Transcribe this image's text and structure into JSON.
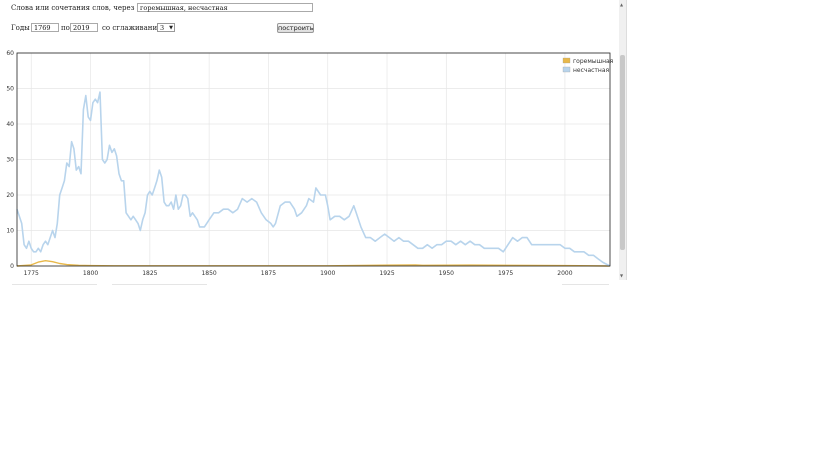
{
  "form": {
    "words_label": "Слова или сочетания слов, через запятую:",
    "words_value": "горемышная, несчастная",
    "years_from_label": "Годы с",
    "year_from": "1769",
    "years_to_label": "по",
    "year_to": "2019",
    "smoothing_label": "со сглаживанием",
    "smoothing_value": "3",
    "build_button": "построить"
  },
  "colors": {
    "gormyshnaya": "#e8b84a",
    "neschastnaya": "#b8d4ec",
    "grid": "#e6e6e6"
  },
  "chart_data": {
    "type": "line",
    "xlim": [
      1769,
      2019
    ],
    "ylim": [
      0,
      60
    ],
    "x_ticks": [
      "1775",
      "1800",
      "1825",
      "1850",
      "1875",
      "1900",
      "1925",
      "1950",
      "1975",
      "2000"
    ],
    "y_ticks": [
      "0",
      "10",
      "20",
      "30",
      "40",
      "50",
      "60"
    ],
    "grid": true,
    "legend_position": "top-right",
    "series": [
      {
        "name": "горемышная",
        "color": "#e8b84a",
        "points": [
          [
            1769,
            0
          ],
          [
            1775,
            0.3
          ],
          [
            1778,
            1.1
          ],
          [
            1781,
            1.5
          ],
          [
            1784,
            1.2
          ],
          [
            1787,
            0.7
          ],
          [
            1790,
            0.4
          ],
          [
            1795,
            0.2
          ],
          [
            1800,
            0.1
          ],
          [
            1810,
            0.05
          ],
          [
            1850,
            0.05
          ],
          [
            1900,
            0.05
          ],
          [
            1937,
            0.3
          ],
          [
            1940,
            0.2
          ],
          [
            1960,
            0.25
          ],
          [
            2000,
            0.1
          ],
          [
            2019,
            0
          ]
        ]
      },
      {
        "name": "несчастная",
        "color": "#b8d4ec",
        "points": [
          [
            1769,
            16
          ],
          [
            1771,
            12
          ],
          [
            1772,
            6
          ],
          [
            1773,
            5
          ],
          [
            1774,
            7
          ],
          [
            1775,
            5
          ],
          [
            1776,
            4
          ],
          [
            1777,
            4
          ],
          [
            1778,
            5
          ],
          [
            1779,
            4
          ],
          [
            1780,
            6
          ],
          [
            1781,
            7
          ],
          [
            1782,
            6
          ],
          [
            1783,
            8
          ],
          [
            1784,
            10
          ],
          [
            1785,
            8
          ],
          [
            1786,
            12
          ],
          [
            1787,
            20
          ],
          [
            1788,
            22
          ],
          [
            1789,
            24
          ],
          [
            1790,
            29
          ],
          [
            1791,
            28
          ],
          [
            1792,
            35
          ],
          [
            1793,
            33
          ],
          [
            1794,
            27
          ],
          [
            1795,
            28
          ],
          [
            1796,
            26
          ],
          [
            1797,
            44
          ],
          [
            1798,
            48
          ],
          [
            1799,
            42
          ],
          [
            1800,
            41
          ],
          [
            1801,
            46
          ],
          [
            1802,
            47
          ],
          [
            1803,
            46
          ],
          [
            1804,
            49
          ],
          [
            1805,
            30
          ],
          [
            1806,
            29
          ],
          [
            1807,
            30
          ],
          [
            1808,
            34
          ],
          [
            1809,
            32
          ],
          [
            1810,
            33
          ],
          [
            1811,
            31
          ],
          [
            1812,
            26
          ],
          [
            1813,
            24
          ],
          [
            1814,
            24
          ],
          [
            1815,
            15
          ],
          [
            1816,
            14
          ],
          [
            1817,
            13
          ],
          [
            1818,
            14
          ],
          [
            1819,
            13
          ],
          [
            1820,
            12
          ],
          [
            1821,
            10
          ],
          [
            1822,
            13
          ],
          [
            1823,
            15
          ],
          [
            1824,
            20
          ],
          [
            1825,
            21
          ],
          [
            1826,
            20
          ],
          [
            1827,
            22
          ],
          [
            1828,
            24
          ],
          [
            1829,
            27
          ],
          [
            1830,
            25
          ],
          [
            1831,
            18
          ],
          [
            1832,
            17
          ],
          [
            1833,
            17
          ],
          [
            1834,
            18
          ],
          [
            1835,
            16
          ],
          [
            1836,
            20
          ],
          [
            1837,
            16
          ],
          [
            1838,
            17
          ],
          [
            1839,
            20
          ],
          [
            1840,
            20
          ],
          [
            1841,
            19
          ],
          [
            1842,
            14
          ],
          [
            1843,
            15
          ],
          [
            1844,
            14
          ],
          [
            1845,
            13
          ],
          [
            1846,
            11
          ],
          [
            1848,
            11
          ],
          [
            1850,
            13
          ],
          [
            1852,
            15
          ],
          [
            1854,
            15
          ],
          [
            1856,
            16
          ],
          [
            1858,
            16
          ],
          [
            1860,
            15
          ],
          [
            1862,
            16
          ],
          [
            1864,
            19
          ],
          [
            1866,
            18
          ],
          [
            1868,
            19
          ],
          [
            1870,
            18
          ],
          [
            1872,
            15
          ],
          [
            1874,
            13
          ],
          [
            1876,
            12
          ],
          [
            1877,
            11
          ],
          [
            1878,
            12
          ],
          [
            1880,
            17
          ],
          [
            1882,
            18
          ],
          [
            1884,
            18
          ],
          [
            1886,
            16
          ],
          [
            1887,
            14
          ],
          [
            1889,
            15
          ],
          [
            1891,
            17
          ],
          [
            1892,
            19
          ],
          [
            1894,
            18
          ],
          [
            1895,
            22
          ],
          [
            1897,
            20
          ],
          [
            1899,
            20
          ],
          [
            1900,
            17
          ],
          [
            1901,
            13
          ],
          [
            1903,
            14
          ],
          [
            1905,
            14
          ],
          [
            1907,
            13
          ],
          [
            1909,
            14
          ],
          [
            1911,
            17
          ],
          [
            1912,
            15
          ],
          [
            1914,
            11
          ],
          [
            1916,
            8
          ],
          [
            1918,
            8
          ],
          [
            1920,
            7
          ],
          [
            1922,
            8
          ],
          [
            1924,
            9
          ],
          [
            1926,
            8
          ],
          [
            1928,
            7
          ],
          [
            1930,
            8
          ],
          [
            1932,
            7
          ],
          [
            1934,
            7
          ],
          [
            1936,
            6
          ],
          [
            1938,
            5
          ],
          [
            1940,
            5
          ],
          [
            1942,
            6
          ],
          [
            1944,
            5
          ],
          [
            1946,
            6
          ],
          [
            1948,
            6
          ],
          [
            1950,
            7
          ],
          [
            1952,
            7
          ],
          [
            1954,
            6
          ],
          [
            1956,
            7
          ],
          [
            1958,
            6
          ],
          [
            1960,
            7
          ],
          [
            1962,
            6
          ],
          [
            1964,
            6
          ],
          [
            1966,
            5
          ],
          [
            1968,
            5
          ],
          [
            1970,
            5
          ],
          [
            1972,
            5
          ],
          [
            1974,
            4
          ],
          [
            1976,
            6
          ],
          [
            1978,
            8
          ],
          [
            1980,
            7
          ],
          [
            1982,
            8
          ],
          [
            1984,
            8
          ],
          [
            1986,
            6
          ],
          [
            1988,
            6
          ],
          [
            1990,
            6
          ],
          [
            1992,
            6
          ],
          [
            1994,
            6
          ],
          [
            1996,
            6
          ],
          [
            1998,
            6
          ],
          [
            2000,
            5
          ],
          [
            2002,
            5
          ],
          [
            2004,
            4
          ],
          [
            2006,
            4
          ],
          [
            2008,
            4
          ],
          [
            2010,
            3
          ],
          [
            2012,
            3
          ],
          [
            2014,
            2
          ],
          [
            2016,
            1
          ],
          [
            2019,
            0
          ]
        ]
      }
    ]
  }
}
